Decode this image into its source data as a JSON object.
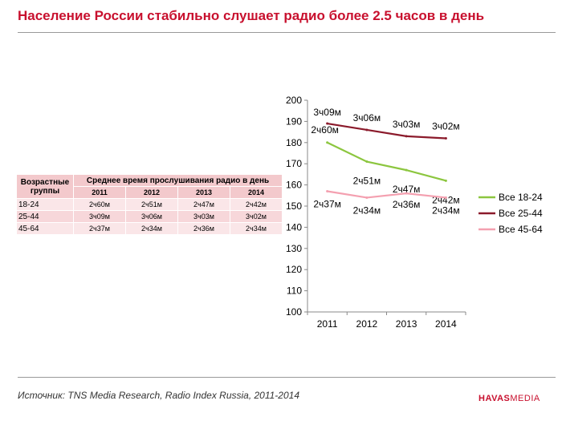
{
  "title": "Население России стабильно слушает радио более 2.5 часов в день",
  "source": "Источник: TNS Media Research, Radio Index Russia, 2011-2014",
  "logo": {
    "part1": "HAVAS",
    "part2": "MEDIA"
  },
  "table": {
    "group_header": "Возрастные группы",
    "main_header": "Среднее время прослушивания радио в день",
    "years": [
      "2011",
      "2012",
      "2013",
      "2014"
    ],
    "rows": [
      {
        "age": "18-24",
        "values": [
          "2ч60м",
          "2ч51м",
          "2ч47м",
          "2ч42м"
        ]
      },
      {
        "age": "25-44",
        "values": [
          "3ч09м",
          "3ч06м",
          "3ч03м",
          "3ч02м"
        ]
      },
      {
        "age": "45-64",
        "values": [
          "2ч37м",
          "2ч34м",
          "2ч36м",
          "2ч34м"
        ]
      }
    ]
  },
  "chart_data": {
    "type": "line",
    "x": [
      "2011",
      "2012",
      "2013",
      "2014"
    ],
    "ylim": [
      100,
      200
    ],
    "yticks": [
      100,
      110,
      120,
      130,
      140,
      150,
      160,
      170,
      180,
      190,
      200
    ],
    "grid": false,
    "legend_position": "right",
    "series": [
      {
        "name": "Все 18-24",
        "color": "#8cc63f",
        "values": [
          180,
          171,
          167,
          162
        ],
        "labels": [
          "2ч60м",
          "2ч51м",
          "2ч47м",
          "2ч42м"
        ]
      },
      {
        "name": "Все 25-44",
        "color": "#8b1a2b",
        "values": [
          189,
          186,
          183,
          182
        ],
        "labels": [
          "3ч09м",
          "3ч06м",
          "3ч03м",
          "3ч02м"
        ]
      },
      {
        "name": "Все 45-64",
        "color": "#f4a0b0",
        "values": [
          157,
          154,
          156,
          154
        ],
        "labels": [
          "2ч37м",
          "2ч34м",
          "2ч36м",
          "2ч34м"
        ]
      }
    ]
  }
}
